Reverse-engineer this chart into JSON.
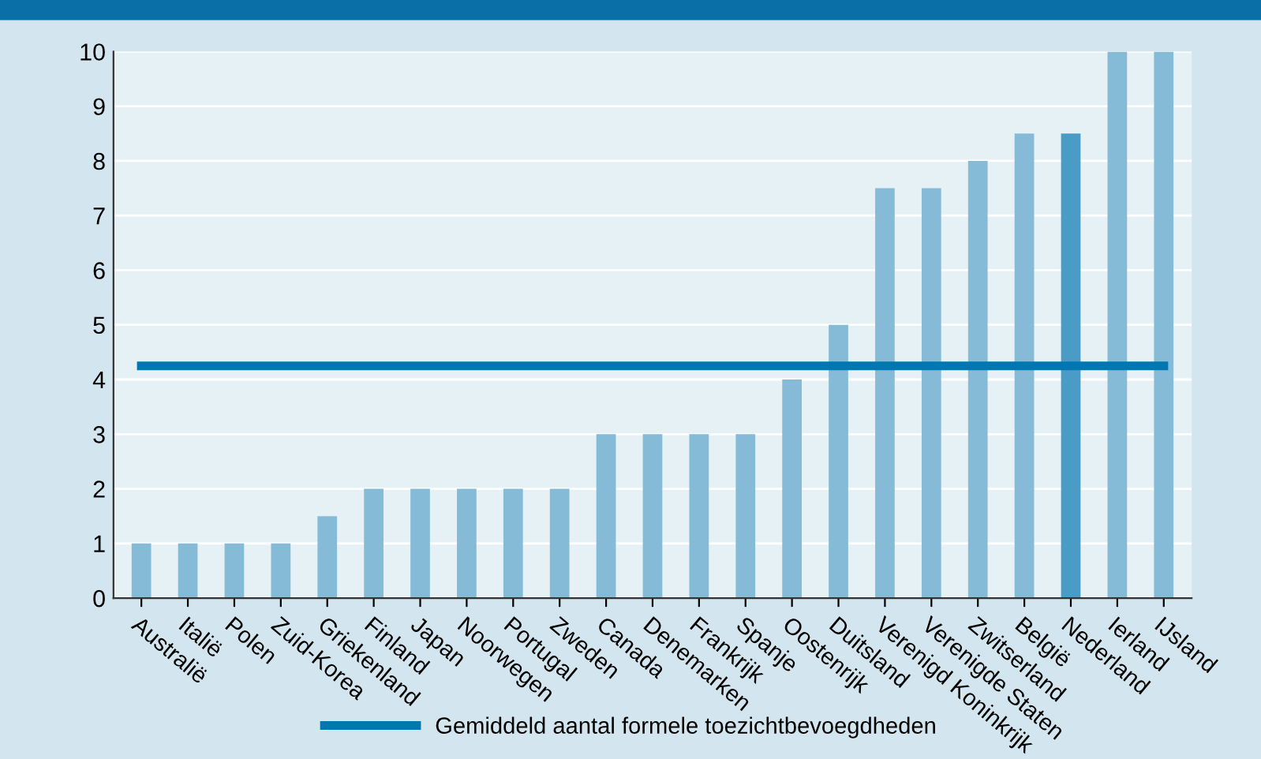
{
  "chart_data": {
    "type": "bar",
    "categories": [
      "Australië",
      "Italië",
      "Polen",
      "Zuid-Korea",
      "Griekenland",
      "Finland",
      "Japan",
      "Noorwegen",
      "Portugal",
      "Zweden",
      "Canada",
      "Denemarken",
      "Frankrijk",
      "Spanje",
      "Oostenrijk",
      "Duitsland",
      "Verenigd Koninkrijk",
      "Verenigde Staten",
      "Zwitserland",
      "België",
      "Nederland",
      "Ierland",
      "IJsland"
    ],
    "series": [
      {
        "colors": [
          "#86bbd8",
          "#86bbd8",
          "#86bbd8",
          "#86bbd8",
          "#86bbd8",
          "#86bbd8",
          "#86bbd8",
          "#86bbd8",
          "#86bbd8",
          "#86bbd8",
          "#86bbd8",
          "#86bbd8",
          "#86bbd8",
          "#86bbd8",
          "#86bbd8",
          "#86bbd8",
          "#86bbd8",
          "#86bbd8",
          "#86bbd8",
          "#86bbd8",
          "#4a9cc7",
          "#86bbd8",
          "#86bbd8"
        ],
        "values": [
          1,
          1,
          1,
          1,
          1.5,
          2,
          2,
          2,
          2,
          2,
          3,
          3,
          3,
          3,
          4,
          5,
          7.5,
          7.5,
          8,
          8.5,
          8.5,
          10,
          10
        ]
      },
      {
        "type": "line",
        "name": "Gemiddeld aantal formele toezichtbevoegdheden",
        "color": "#0077b0",
        "values": [
          4.25,
          4.25,
          4.25,
          4.25,
          4.25,
          4.25,
          4.25,
          4.25,
          4.25,
          4.25,
          4.25,
          4.25,
          4.25,
          4.25,
          4.25,
          4.25,
          4.25,
          4.25,
          4.25,
          4.25,
          4.25,
          4.25,
          4.25
        ]
      }
    ],
    "ylim": [
      0,
      10
    ],
    "yticks": [
      0,
      1,
      2,
      3,
      4,
      5,
      6,
      7,
      8,
      9,
      10
    ],
    "grid": "y",
    "legend": "bottom",
    "marker": "none",
    "line_style": "solid"
  }
}
